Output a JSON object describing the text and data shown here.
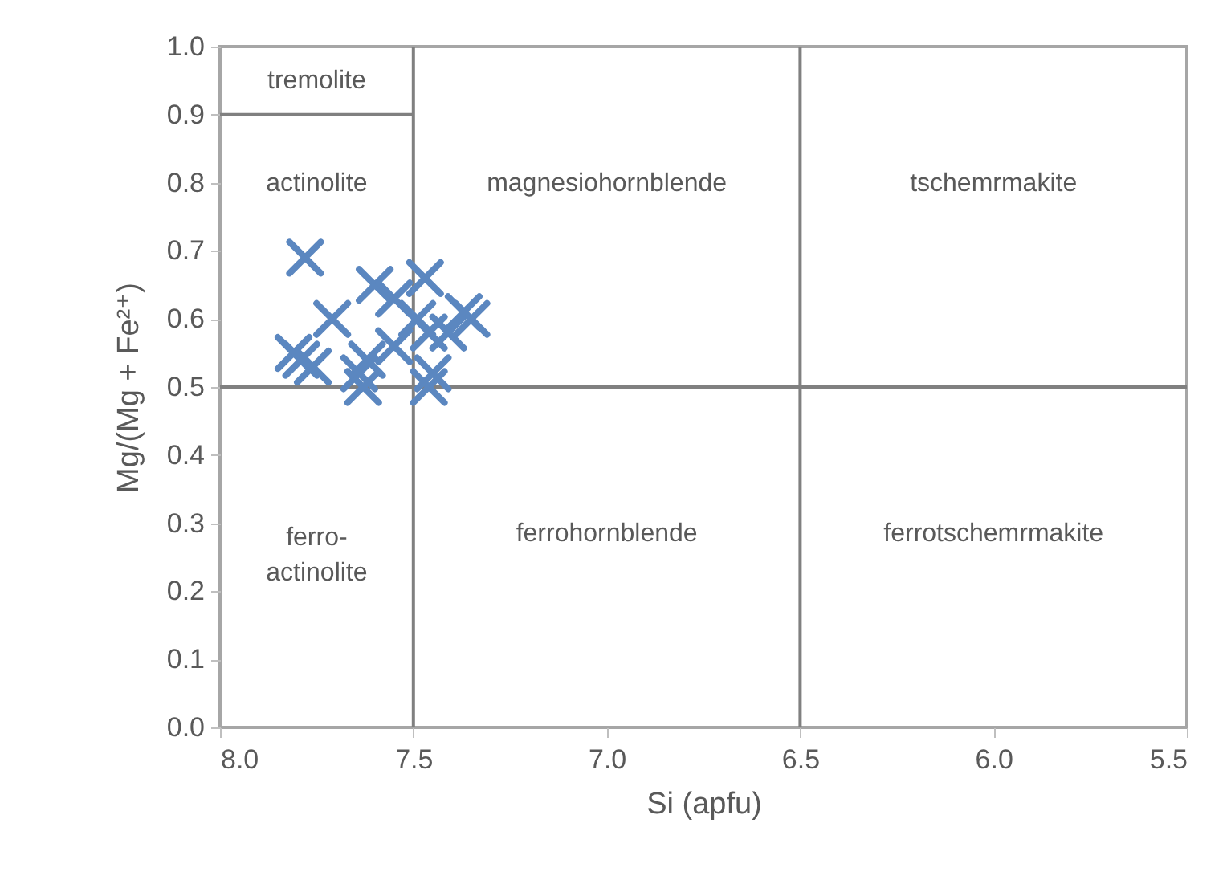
{
  "chart_data": {
    "type": "scatter",
    "xlabel": "Si (apfu)",
    "ylabel": "Mg/(Mg + Fe²⁺)",
    "xlim": [
      8.0,
      5.5
    ],
    "xticks": [
      {
        "value": 8.0,
        "label": "8.0"
      },
      {
        "value": 7.5,
        "label": "7.5"
      },
      {
        "value": 7.0,
        "label": "7.0"
      },
      {
        "value": 6.5,
        "label": "6.5"
      },
      {
        "value": 6.0,
        "label": "6.0"
      },
      {
        "value": 5.5,
        "label": "5.5"
      }
    ],
    "ylim": [
      0,
      1
    ],
    "yticks": [
      {
        "value": 0,
        "label": "0.0"
      },
      {
        "value": 0.1,
        "label": "0.1"
      },
      {
        "value": 0.2,
        "label": "0.2"
      },
      {
        "value": 0.3,
        "label": "0.3"
      },
      {
        "value": 0.4,
        "label": "0.4"
      },
      {
        "value": 0.5,
        "label": "0.5"
      },
      {
        "value": 0.6,
        "label": "0.6"
      },
      {
        "value": 0.7,
        "label": "0.7"
      },
      {
        "value": 0.8,
        "label": "0.8"
      },
      {
        "value": 0.9,
        "label": "0.9"
      },
      {
        "value": 1.0,
        "label": "1.0"
      }
    ],
    "grid": false,
    "series": [
      {
        "color": "#5b87c0",
        "marker": "cross",
        "x": [
          7.78,
          7.81,
          7.79,
          7.76,
          7.71,
          7.64,
          7.63,
          7.62,
          7.6,
          7.55,
          7.55,
          7.49,
          7.47,
          7.46,
          7.46,
          7.45,
          7.41,
          7.37,
          7.35
        ],
        "values": [
          0.69,
          0.55,
          0.54,
          0.53,
          0.6,
          0.52,
          0.5,
          0.54,
          0.65,
          0.63,
          0.56,
          0.6,
          0.66,
          0.58,
          0.5,
          0.52,
          0.58,
          0.61,
          0.6
        ]
      },
      {
        "type": "line",
        "color": "#808080",
        "x": [
          8.0,
          7.5
        ],
        "values": [
          0.9,
          0.9
        ]
      }
    ],
    "ref_lines": [
      {
        "axis": "x",
        "value": 7.5,
        "color": "#808080"
      },
      {
        "axis": "x",
        "value": 6.5,
        "color": "#808080"
      },
      {
        "axis": "y",
        "value": 0.5,
        "color": "#808080"
      }
    ],
    "annotations": [
      "tremolite",
      "actinolite",
      "magnesiohornblende",
      "tschemrmakite",
      "ferro-\nactinolite",
      "ferrohornblende",
      "ferrotschemrmakite"
    ]
  }
}
